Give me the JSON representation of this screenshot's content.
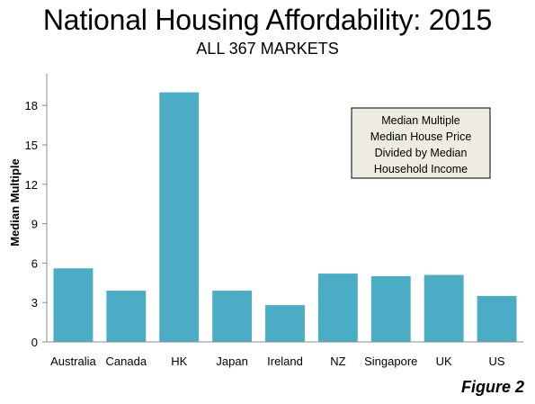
{
  "chart_data": {
    "type": "bar",
    "title": "National Housing Affordability: 2015",
    "subtitle": "ALL 367 MARKETS",
    "ylabel": "Median Multiple",
    "xlabel": "",
    "categories": [
      "Australia",
      "Canada",
      "HK",
      "Japan",
      "Ireland",
      "NZ",
      "Singapore",
      "UK",
      "US"
    ],
    "values": [
      5.6,
      3.9,
      19.0,
      3.9,
      2.8,
      5.2,
      5.0,
      5.1,
      3.5
    ],
    "ylim": [
      0,
      20
    ],
    "yticks": [
      0,
      3,
      6,
      9,
      12,
      15,
      18
    ],
    "grid": false,
    "bar_color": "#4BACC6",
    "annotation": {
      "lines": [
        "Median Multiple",
        "Median House Price",
        "Divided by Median",
        "Household Income"
      ],
      "background": "#EEECE1"
    }
  },
  "figure_label": "Figure 2"
}
